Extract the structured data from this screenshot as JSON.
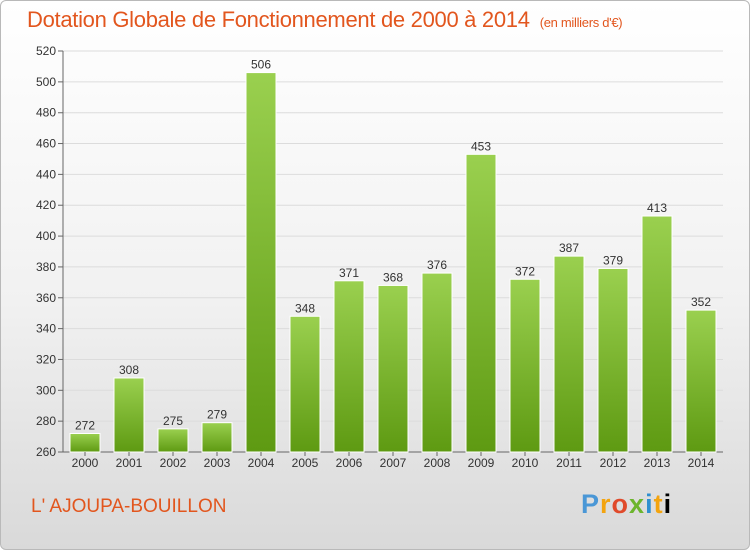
{
  "header": {
    "title": "Dotation Globale de Fonctionnement de 2000 à 2014",
    "unit": "(en milliers d'€)"
  },
  "footer": {
    "commune": "L' AJOUPA-BOUILLON",
    "logo_letters": [
      "P",
      "r",
      "o",
      "x",
      "i",
      "t",
      "i"
    ]
  },
  "chart_data": {
    "type": "bar",
    "title": "Dotation Globale de Fonctionnement de 2000 à 2014",
    "subtitle": "(en milliers d'€)",
    "xlabel": "",
    "ylabel": "",
    "categories": [
      "2000",
      "2001",
      "2002",
      "2003",
      "2004",
      "2005",
      "2006",
      "2007",
      "2008",
      "2009",
      "2010",
      "2011",
      "2012",
      "2013",
      "2014"
    ],
    "values": [
      272,
      308,
      275,
      279,
      506,
      348,
      371,
      368,
      376,
      453,
      372,
      387,
      379,
      413,
      352
    ],
    "ylim": [
      260,
      520
    ],
    "yticks": [
      260,
      280,
      300,
      320,
      340,
      360,
      380,
      400,
      420,
      440,
      460,
      480,
      500,
      520
    ],
    "grid": true,
    "legend": "none",
    "colors": {
      "bar_top": "#9ad04f",
      "bar_bottom": "#5e9a12",
      "title": "#e2561e"
    }
  }
}
